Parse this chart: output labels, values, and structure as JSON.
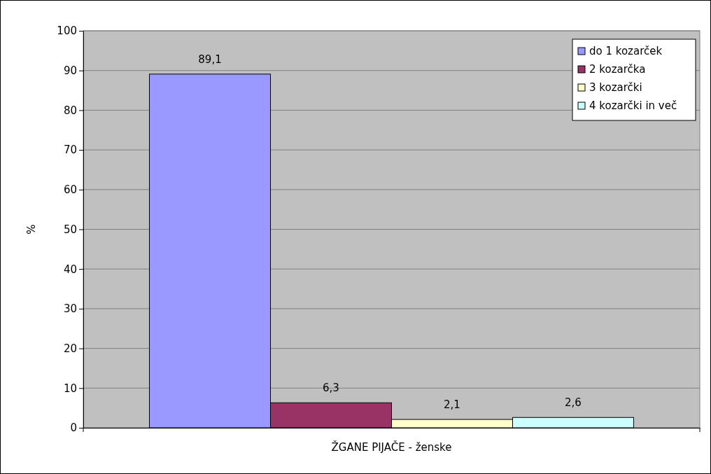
{
  "chart_data": {
    "type": "bar",
    "ylabel": "%",
    "categories": [
      "ŽGANE PIJAČE - ženske"
    ],
    "series": [
      {
        "name": "do 1 kozarček",
        "color": "#9999ff",
        "values": [
          89.1
        ],
        "value_labels": [
          "89,1"
        ]
      },
      {
        "name": "2 kozarčka",
        "color": "#993366",
        "values": [
          6.3
        ],
        "value_labels": [
          "6,3"
        ]
      },
      {
        "name": "3 kozarčki",
        "color": "#ffffcc",
        "values": [
          2.1
        ],
        "value_labels": [
          "2,1"
        ]
      },
      {
        "name": "4 kozarčki in več",
        "color": "#ccffff",
        "values": [
          2.6
        ],
        "value_labels": [
          "2,6"
        ]
      }
    ],
    "ylim": [
      0,
      100
    ],
    "yticks": [
      0,
      10,
      20,
      30,
      40,
      50,
      60,
      70,
      80,
      90,
      100
    ],
    "grid": "y",
    "legend": "top right"
  }
}
